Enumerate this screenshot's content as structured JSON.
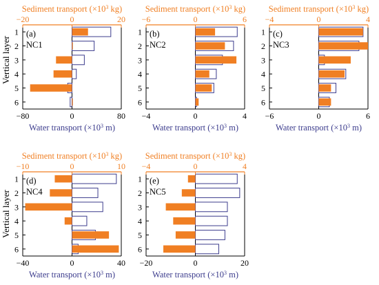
{
  "figure": {
    "ylabel": "Vertical layer",
    "top_axis_label": "Sediment transport (×10³ kg)",
    "bottom_axis_label": "Water transport (×10³ m³)",
    "colors": {
      "sediment": "#F07F23",
      "water_edge": "#3B3B8C",
      "water_fill": "#FFFFFF",
      "frame": "#000000"
    }
  },
  "chart_data": [
    {
      "type": "bar",
      "orientation": "horizontal",
      "panel": "(a)",
      "name": "NC1",
      "categories": [
        "1",
        "2",
        "3",
        "4",
        "5",
        "6"
      ],
      "xlim_water": [
        -80,
        80
      ],
      "xticks_water": [
        -80,
        0,
        80
      ],
      "xlim_sediment": [
        -20,
        20
      ],
      "xticks_sediment": [
        -20,
        0,
        20
      ],
      "series": [
        {
          "name": "Water transport",
          "axis": "water",
          "values": [
            63,
            36,
            20,
            7,
            -7,
            -3
          ]
        },
        {
          "name": "Sediment transport",
          "axis": "sediment",
          "values": [
            6.5,
            0.3,
            -6.5,
            -7.5,
            -17,
            0.3
          ]
        }
      ]
    },
    {
      "type": "bar",
      "orientation": "horizontal",
      "panel": "(b)",
      "name": "NC2",
      "categories": [
        "1",
        "2",
        "3",
        "4",
        "5",
        "6"
      ],
      "xlim_water": [
        -4,
        4
      ],
      "xticks_water": [
        -4,
        0,
        4
      ],
      "xlim_sediment": [
        -6,
        6
      ],
      "xticks_sediment": [
        -6,
        0,
        6
      ],
      "series": [
        {
          "name": "Water transport",
          "axis": "water",
          "values": [
            3.4,
            3.1,
            2.2,
            1.7,
            1.5,
            0.1
          ]
        },
        {
          "name": "Sediment transport",
          "axis": "sediment",
          "values": [
            2.4,
            3.6,
            5.0,
            1.7,
            2.0,
            0.4
          ]
        }
      ]
    },
    {
      "type": "bar",
      "orientation": "horizontal",
      "panel": "(c)",
      "name": "NC3",
      "categories": [
        "1",
        "2",
        "3",
        "4",
        "5",
        "6"
      ],
      "xlim_water": [
        -6,
        6
      ],
      "xticks_water": [
        -6,
        0,
        6
      ],
      "xlim_sediment": [
        -4,
        4
      ],
      "xticks_sediment": [
        -4,
        0,
        4
      ],
      "series": [
        {
          "name": "Water transport",
          "axis": "water",
          "values": [
            5.4,
            4.9,
            0.7,
            3.3,
            2.1,
            1.3
          ]
        },
        {
          "name": "Sediment transport",
          "axis": "sediment",
          "values": [
            3.6,
            4.0,
            2.6,
            2.1,
            1.0,
            1.0
          ]
        }
      ]
    },
    {
      "type": "bar",
      "orientation": "horizontal",
      "panel": "(d)",
      "name": "NC4",
      "categories": [
        "1",
        "2",
        "3",
        "4",
        "5",
        "6"
      ],
      "xlim_water": [
        -40,
        40
      ],
      "xticks_water": [
        -40,
        0,
        40
      ],
      "xlim_sediment": [
        -10,
        10
      ],
      "xticks_sediment": [
        -10,
        0,
        10
      ],
      "series": [
        {
          "name": "Water transport",
          "axis": "water",
          "values": [
            36,
            21,
            25,
            12,
            19,
            5
          ]
        },
        {
          "name": "Sediment transport",
          "axis": "sediment",
          "values": [
            -3.5,
            -4.5,
            -9.5,
            -1.5,
            7.5,
            9.5
          ]
        }
      ]
    },
    {
      "type": "bar",
      "orientation": "horizontal",
      "panel": "(e)",
      "name": "NC5",
      "categories": [
        "1",
        "2",
        "3",
        "4",
        "5",
        "6"
      ],
      "xlim_water": [
        -20,
        20
      ],
      "xticks_water": [
        -20,
        0,
        20
      ],
      "xlim_sediment": [
        -4,
        4
      ],
      "xticks_sediment": [
        -4,
        0,
        4
      ],
      "series": [
        {
          "name": "Water transport",
          "axis": "water",
          "values": [
            17,
            18,
            13,
            13,
            12,
            9.5
          ]
        },
        {
          "name": "Sediment transport",
          "axis": "sediment",
          "values": [
            -0.6,
            -1.1,
            -2.4,
            -1.8,
            -1.6,
            -2.6
          ]
        }
      ]
    }
  ]
}
